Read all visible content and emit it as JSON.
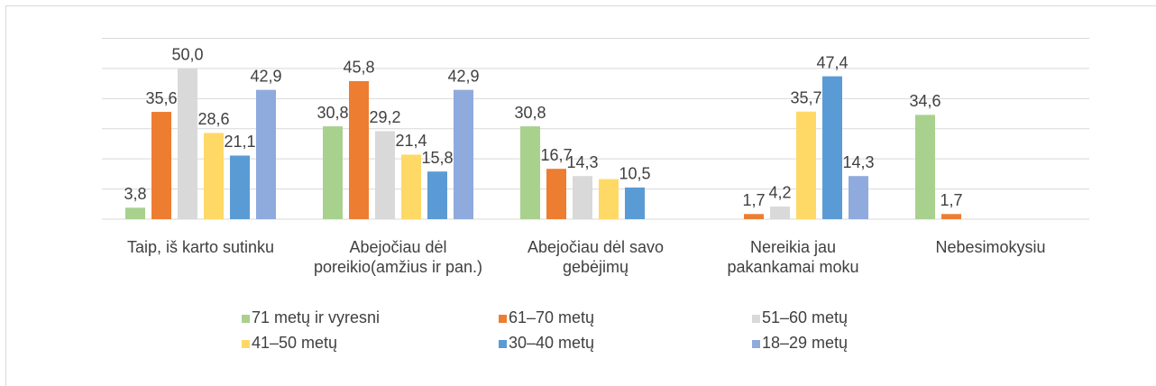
{
  "chart_data": {
    "type": "bar",
    "categories": [
      "Taip, iš karto sutinku",
      "Abejočiau dėl poreikio(amžius ir pan.)",
      "Abejočiau dėl savo gebėjimų",
      "Nereikia jau pakankamai moku",
      "Nebesimokysiu"
    ],
    "series": [
      {
        "name": "71 metų ir vyresni",
        "color": "#a9d18e",
        "values": [
          3.8,
          30.8,
          30.8,
          null,
          34.6
        ],
        "value_labels": [
          "3,8",
          "30,8",
          "30,8",
          null,
          "34,6"
        ]
      },
      {
        "name": "61–70 metų",
        "color": "#ed7d31",
        "values": [
          35.6,
          45.8,
          16.7,
          1.7,
          1.7
        ],
        "value_labels": [
          "35,6",
          "45,8",
          "16,7",
          "1,7",
          "1,7"
        ]
      },
      {
        "name": "51–60 metų",
        "color": "#d9d9d9",
        "values": [
          50.0,
          29.2,
          14.3,
          4.2,
          null
        ],
        "value_labels": [
          "50,0",
          "29,2",
          "14,3",
          "4,2",
          null
        ]
      },
      {
        "name": "41–50 metų",
        "color": "#ffd966",
        "values": [
          28.6,
          21.4,
          13.3,
          35.7,
          null
        ],
        "value_labels": [
          "28,6",
          "21,4",
          null,
          "35,7",
          null
        ]
      },
      {
        "name": "30–40 metų",
        "color": "#5b9bd5",
        "values": [
          21.1,
          15.8,
          10.5,
          47.4,
          null
        ],
        "value_labels": [
          "21,1",
          "15,8",
          "10,5",
          "47,4",
          null
        ]
      },
      {
        "name": "18–29 metų",
        "color": "#8faadc",
        "values": [
          42.9,
          42.9,
          null,
          14.3,
          null
        ],
        "value_labels": [
          "42,9",
          "42,9",
          null,
          "14,3",
          null
        ]
      }
    ],
    "ylim": [
      0,
      60
    ],
    "yticks": [
      0,
      10,
      20,
      30,
      40,
      50,
      60
    ],
    "grid": true
  }
}
